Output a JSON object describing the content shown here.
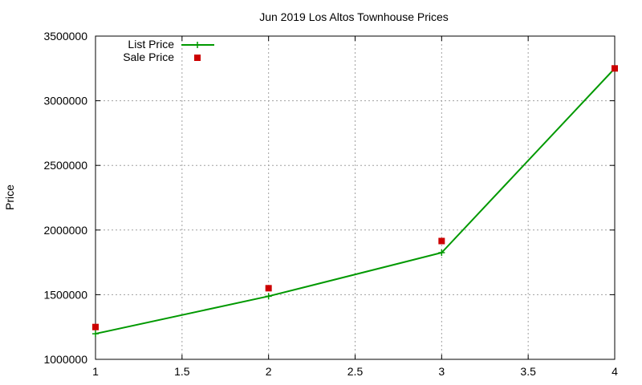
{
  "chart_data": {
    "type": "line",
    "title": "Jun 2019 Los Altos Townhouse Prices",
    "xlabel": "",
    "ylabel": "Price",
    "xlim": [
      1,
      4
    ],
    "ylim": [
      1000000,
      3500000
    ],
    "x_ticks": [
      "1",
      "1.5",
      "2",
      "2.5",
      "3",
      "3.5",
      "4"
    ],
    "y_ticks": [
      "1000000",
      "1500000",
      "2000000",
      "2500000",
      "3000000",
      "3500000"
    ],
    "grid": true,
    "legend_position": "top-left",
    "series": [
      {
        "name": "List Price",
        "style": "line-with-plus-markers",
        "color": "#009900",
        "x": [
          1,
          2,
          3,
          4
        ],
        "y": [
          1198000,
          1488000,
          1825000,
          3250000
        ]
      },
      {
        "name": "Sale Price",
        "style": "square-markers",
        "color": "#cc0000",
        "x": [
          1,
          2,
          3,
          4
        ],
        "y": [
          1250000,
          1550000,
          1915000,
          3250000
        ]
      }
    ]
  }
}
